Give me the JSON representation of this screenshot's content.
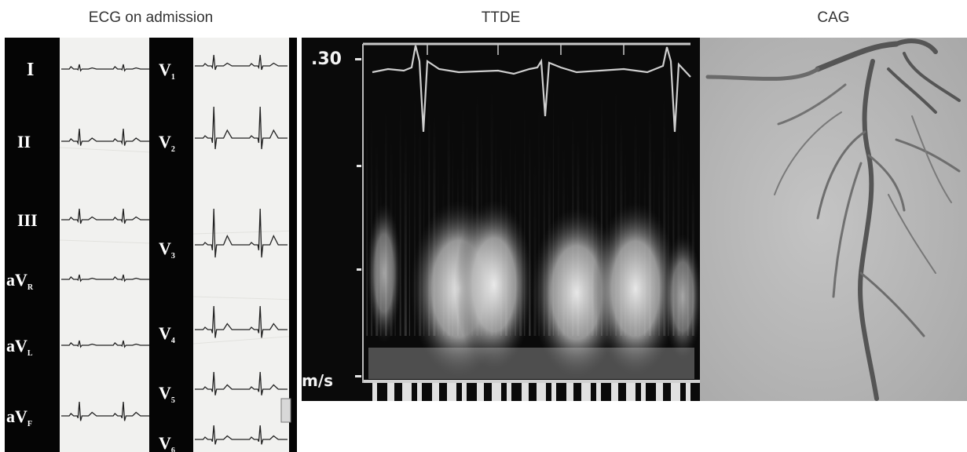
{
  "captions": {
    "ecg": "ECG on admission",
    "ttde": "TTDE",
    "cag": "CAG"
  },
  "ecg": {
    "limb_leads": [
      {
        "name": "I",
        "sub": ""
      },
      {
        "name": "II",
        "sub": ""
      },
      {
        "name": "III",
        "sub": ""
      },
      {
        "name": "aV",
        "sub": "R"
      },
      {
        "name": "aV",
        "sub": "L"
      },
      {
        "name": "aV",
        "sub": "F"
      }
    ],
    "chest_leads": [
      {
        "name": "V",
        "sub": "1"
      },
      {
        "name": "V",
        "sub": "2"
      },
      {
        "name": "V",
        "sub": "3"
      },
      {
        "name": "V",
        "sub": "4"
      },
      {
        "name": "V",
        "sub": "5"
      },
      {
        "name": "V",
        "sub": "6"
      }
    ]
  },
  "ttde": {
    "scale_top_label": ".30",
    "unit_label": "m/s"
  },
  "colors": {
    "ecg_background": "#f1f1ef",
    "ecg_label_strip": "#050505",
    "ecg_trace": "#222222",
    "doppler_background": "#0a0a0a",
    "doppler_signal": "#e6e6e6",
    "angiogram_background": "#bdbdbd",
    "vessel": "#5a5a5a"
  }
}
